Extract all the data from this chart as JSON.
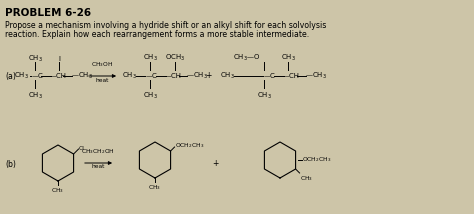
{
  "background_color": "#cdc5a8",
  "title": "PROBLEM 6-26",
  "desc1": "Propose a mechanism involving a hydride shift or an alkyl shift for each solvolysis",
  "desc2": "reaction. Explain how each rearrangement forms a more stable intermediate.",
  "label_a": "(a)",
  "label_b": "(b)"
}
